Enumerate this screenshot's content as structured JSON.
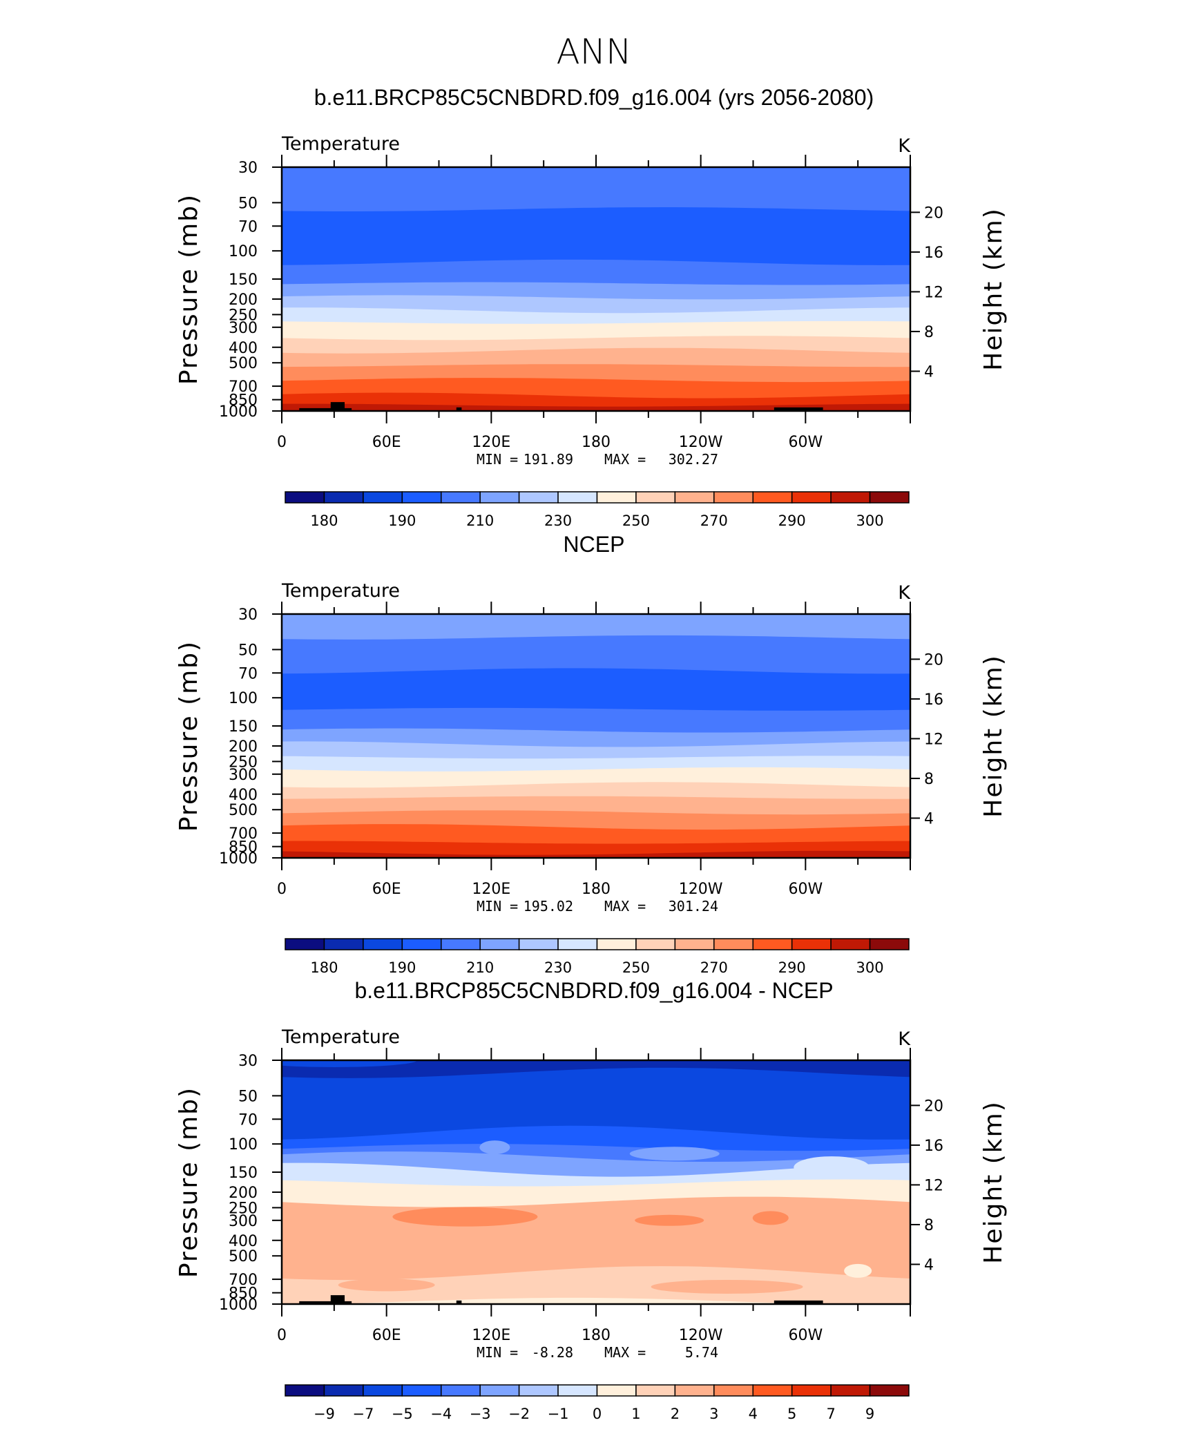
{
  "figure": {
    "title": "ANN"
  },
  "chart_data": [
    {
      "type": "heatmap",
      "title": "b.e11.BRCP85C5CNBDRD.f09_g16.004 (yrs 2056-2080)",
      "left_label": "Temperature",
      "units": "K",
      "xlabel": "",
      "ylabel": "Pressure  (mb)",
      "ylabel_right": "Height  (km)",
      "x_ticks": [
        "0",
        "60E",
        "120E",
        "180",
        "120W",
        "60W"
      ],
      "x_tick_values": [
        0,
        60,
        120,
        180,
        240,
        300
      ],
      "xlim": [
        0,
        360
      ],
      "y_ticks": [
        "30",
        "50",
        "70",
        "100",
        "150",
        "200",
        "250",
        "300",
        "400",
        "500",
        "700",
        "850",
        "1000"
      ],
      "y_tick_values": [
        30,
        50,
        70,
        100,
        150,
        200,
        250,
        300,
        400,
        500,
        700,
        850,
        1000
      ],
      "ylim": [
        1000,
        30
      ],
      "y_scale": "log",
      "height_ticks": [
        "4",
        "8",
        "12",
        "16",
        "20"
      ],
      "height_tick_values": [
        4,
        8,
        12,
        16,
        20
      ],
      "min_label": "MIN =",
      "min_value": "191.89",
      "max_label": "MAX =",
      "max_value": "302.27",
      "colorbar_labels": [
        "180",
        "190",
        "210",
        "230",
        "250",
        "270",
        "290",
        "300"
      ],
      "colorbar_colors": [
        "#0b0d80",
        "#0a2bb0",
        "#0b48e0",
        "#1c5dff",
        "#4779ff",
        "#7ea4ff",
        "#aec7ff",
        "#d6e6ff",
        "#fff0dc",
        "#ffd2b8",
        "#ffb28e",
        "#ff8c5c",
        "#ff5a21",
        "#ea3107",
        "#c01905",
        "#8c0a0a"
      ],
      "pressure_level_fill": [
        {
          "p": 30,
          "color": "#4779ff"
        },
        {
          "p": 55,
          "color": "#1c5dff"
        },
        {
          "p": 118,
          "color": "#4779ff"
        },
        {
          "p": 160,
          "color": "#7ea4ff"
        },
        {
          "p": 195,
          "color": "#aec7ff"
        },
        {
          "p": 235,
          "color": "#d6e6ff"
        },
        {
          "p": 280,
          "color": "#fff0dc"
        },
        {
          "p": 350,
          "color": "#ffd2b8"
        },
        {
          "p": 420,
          "color": "#ffb28e"
        },
        {
          "p": 520,
          "color": "#ff8c5c"
        },
        {
          "p": 640,
          "color": "#ff5a21"
        },
        {
          "p": 800,
          "color": "#ea3107"
        },
        {
          "p": 920,
          "color": "#c01905"
        }
      ],
      "terrain": true,
      "difference_features": false
    },
    {
      "type": "heatmap",
      "title": "NCEP",
      "left_label": "Temperature",
      "units": "K",
      "xlabel": "",
      "ylabel": "Pressure  (mb)",
      "ylabel_right": "Height  (km)",
      "x_ticks": [
        "0",
        "60E",
        "120E",
        "180",
        "120W",
        "60W"
      ],
      "x_tick_values": [
        0,
        60,
        120,
        180,
        240,
        300
      ],
      "xlim": [
        0,
        360
      ],
      "y_ticks": [
        "30",
        "50",
        "70",
        "100",
        "150",
        "200",
        "250",
        "300",
        "400",
        "500",
        "700",
        "850",
        "1000"
      ],
      "y_tick_values": [
        30,
        50,
        70,
        100,
        150,
        200,
        250,
        300,
        400,
        500,
        700,
        850,
        1000
      ],
      "ylim": [
        1000,
        30
      ],
      "y_scale": "log",
      "height_ticks": [
        "4",
        "8",
        "12",
        "16",
        "20"
      ],
      "height_tick_values": [
        4,
        8,
        12,
        16,
        20
      ],
      "min_label": "MIN =",
      "min_value": "195.02",
      "max_label": "MAX =",
      "max_value": "301.24",
      "colorbar_labels": [
        "180",
        "190",
        "210",
        "230",
        "250",
        "270",
        "290",
        "300"
      ],
      "colorbar_colors": [
        "#0b0d80",
        "#0a2bb0",
        "#0b48e0",
        "#1c5dff",
        "#4779ff",
        "#7ea4ff",
        "#aec7ff",
        "#d6e6ff",
        "#fff0dc",
        "#ffd2b8",
        "#ffb28e",
        "#ff8c5c",
        "#ff5a21",
        "#ea3107",
        "#c01905",
        "#8c0a0a"
      ],
      "pressure_level_fill": [
        {
          "p": 30,
          "color": "#7ea4ff"
        },
        {
          "p": 42,
          "color": "#4779ff"
        },
        {
          "p": 68,
          "color": "#1c5dff"
        },
        {
          "p": 118,
          "color": "#4779ff"
        },
        {
          "p": 160,
          "color": "#7ea4ff"
        },
        {
          "p": 195,
          "color": "#aec7ff"
        },
        {
          "p": 235,
          "color": "#d6e6ff"
        },
        {
          "p": 280,
          "color": "#fff0dc"
        },
        {
          "p": 350,
          "color": "#ffd2b8"
        },
        {
          "p": 420,
          "color": "#ffb28e"
        },
        {
          "p": 520,
          "color": "#ff8c5c"
        },
        {
          "p": 640,
          "color": "#ff5a21"
        },
        {
          "p": 800,
          "color": "#ea3107"
        },
        {
          "p": 930,
          "color": "#c01905"
        }
      ],
      "terrain": false,
      "difference_features": false
    },
    {
      "type": "heatmap",
      "title": "b.e11.BRCP85C5CNBDRD.f09_g16.004 - NCEP",
      "left_label": "Temperature",
      "units": "K",
      "xlabel": "",
      "ylabel": "Pressure  (mb)",
      "ylabel_right": "Height  (km)",
      "x_ticks": [
        "0",
        "60E",
        "120E",
        "180",
        "120W",
        "60W"
      ],
      "x_tick_values": [
        0,
        60,
        120,
        180,
        240,
        300
      ],
      "xlim": [
        0,
        360
      ],
      "y_ticks": [
        "30",
        "50",
        "70",
        "100",
        "150",
        "200",
        "250",
        "300",
        "400",
        "500",
        "700",
        "850",
        "1000"
      ],
      "y_tick_values": [
        30,
        50,
        70,
        100,
        150,
        200,
        250,
        300,
        400,
        500,
        700,
        850,
        1000
      ],
      "ylim": [
        1000,
        30
      ],
      "y_scale": "log",
      "height_ticks": [
        "4",
        "8",
        "12",
        "16",
        "20"
      ],
      "height_tick_values": [
        4,
        8,
        12,
        16,
        20
      ],
      "min_label": "MIN =",
      "min_value": "-8.28",
      "max_label": "MAX =",
      "max_value": "5.74",
      "colorbar_labels": [
        "−9",
        "−7",
        "−5",
        "−4",
        "−3",
        "−2",
        "−1",
        "0",
        "1",
        "2",
        "3",
        "4",
        "5",
        "7",
        "9"
      ],
      "colorbar_colors": [
        "#0b0d80",
        "#0a2bb0",
        "#0b48e0",
        "#1c5dff",
        "#4779ff",
        "#7ea4ff",
        "#aec7ff",
        "#d6e6ff",
        "#fff0dc",
        "#ffd2b8",
        "#ffb28e",
        "#ff8c5c",
        "#ff5a21",
        "#ea3107",
        "#c01905",
        "#8c0a0a"
      ],
      "pressure_level_fill": [
        {
          "p": 30,
          "color": "#0a2bb0"
        },
        {
          "p": 36,
          "color": "#0b48e0"
        },
        {
          "p": 85,
          "color": "#1c5dff"
        },
        {
          "p": 105,
          "color": "#4779ff"
        },
        {
          "p": 120,
          "color": "#7ea4ff"
        },
        {
          "p": 145,
          "color": "#d6e6ff"
        },
        {
          "p": 175,
          "color": "#fff0dc"
        },
        {
          "p": 230,
          "color": "#ffb28e"
        },
        {
          "p": 640,
          "color": "#ffd2b8"
        },
        {
          "p": 960,
          "color": "#fff0dc"
        }
      ],
      "terrain": true,
      "difference_features": true
    }
  ]
}
